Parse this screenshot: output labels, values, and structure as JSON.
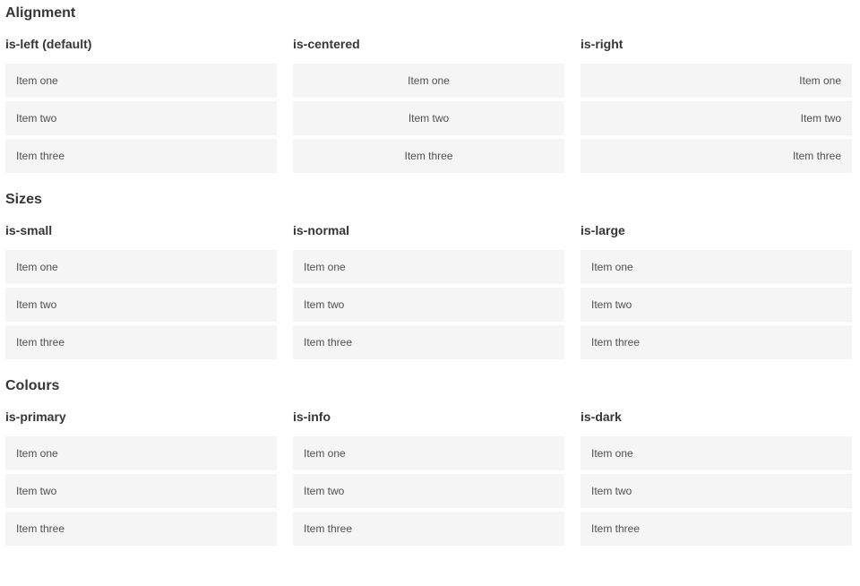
{
  "items": [
    "Item one",
    "Item two",
    "Item three"
  ],
  "sections": [
    {
      "title": "Alignment",
      "groups": [
        {
          "label": "is-left (default)"
        },
        {
          "label": "is-centered"
        },
        {
          "label": "is-right"
        }
      ]
    },
    {
      "title": "Sizes",
      "groups": [
        {
          "label": "is-small"
        },
        {
          "label": "is-normal"
        },
        {
          "label": "is-large"
        }
      ]
    },
    {
      "title": "Colours",
      "groups": [
        {
          "label": "is-primary"
        },
        {
          "label": "is-info"
        },
        {
          "label": "is-dark"
        }
      ]
    }
  ],
  "colors": {
    "item_bg": "#f5f5f5",
    "item_text": "#4f4f4f",
    "heading_text": "#363636",
    "primary": "#00d1b2",
    "info": "#3298dc",
    "dark": "#363636",
    "on_color_text": "#ffffff"
  }
}
